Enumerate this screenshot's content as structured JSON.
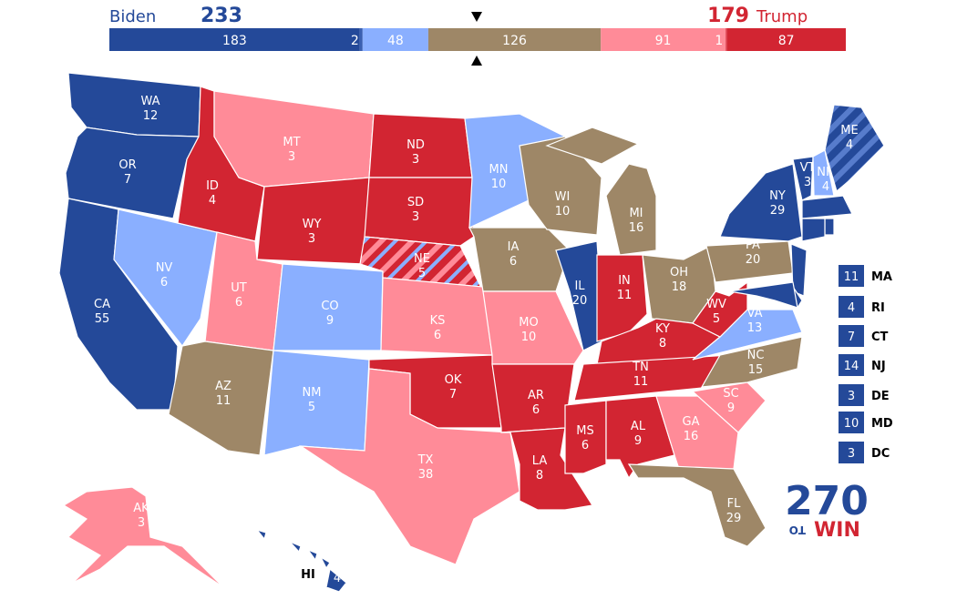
{
  "header": {
    "biden_label": "Biden",
    "biden_total": 233,
    "trump_total": 179,
    "trump_label": "Trump"
  },
  "ratings": {
    "safe_d": "#244999",
    "likely_d": "#3a5fb0",
    "lean_d": "#8aafff",
    "tossup": "#9e8767",
    "lean_r": "#ff8b98",
    "likely_r": "#e8505f",
    "safe_r": "#d22532"
  },
  "bar": [
    {
      "value": 183,
      "rating": "safe_d"
    },
    {
      "value": 2,
      "rating": "likely_d"
    },
    {
      "value": 48,
      "rating": "lean_d"
    },
    {
      "value": 126,
      "rating": "tossup"
    },
    {
      "value": 91,
      "rating": "lean_r"
    },
    {
      "value": 1,
      "rating": "likely_r"
    },
    {
      "value": 87,
      "rating": "safe_r"
    }
  ],
  "states": [
    {
      "abbr": "WA",
      "ev": 12,
      "rating": "safe_d"
    },
    {
      "abbr": "OR",
      "ev": 7,
      "rating": "safe_d"
    },
    {
      "abbr": "CA",
      "ev": 55,
      "rating": "safe_d"
    },
    {
      "abbr": "NV",
      "ev": 6,
      "rating": "lean_d"
    },
    {
      "abbr": "ID",
      "ev": 4,
      "rating": "safe_r"
    },
    {
      "abbr": "MT",
      "ev": 3,
      "rating": "lean_r"
    },
    {
      "abbr": "WY",
      "ev": 3,
      "rating": "safe_r"
    },
    {
      "abbr": "UT",
      "ev": 6,
      "rating": "lean_r"
    },
    {
      "abbr": "CO",
      "ev": 9,
      "rating": "lean_d"
    },
    {
      "abbr": "AZ",
      "ev": 11,
      "rating": "tossup"
    },
    {
      "abbr": "NM",
      "ev": 5,
      "rating": "lean_d"
    },
    {
      "abbr": "ND",
      "ev": 3,
      "rating": "safe_r"
    },
    {
      "abbr": "SD",
      "ev": 3,
      "rating": "safe_r"
    },
    {
      "abbr": "NE",
      "ev": 5,
      "rating": "split_ne"
    },
    {
      "abbr": "KS",
      "ev": 6,
      "rating": "lean_r"
    },
    {
      "abbr": "OK",
      "ev": 7,
      "rating": "safe_r"
    },
    {
      "abbr": "TX",
      "ev": 38,
      "rating": "lean_r"
    },
    {
      "abbr": "MN",
      "ev": 10,
      "rating": "lean_d"
    },
    {
      "abbr": "IA",
      "ev": 6,
      "rating": "tossup"
    },
    {
      "abbr": "MO",
      "ev": 10,
      "rating": "lean_r"
    },
    {
      "abbr": "AR",
      "ev": 6,
      "rating": "safe_r"
    },
    {
      "abbr": "LA",
      "ev": 8,
      "rating": "safe_r"
    },
    {
      "abbr": "WI",
      "ev": 10,
      "rating": "tossup"
    },
    {
      "abbr": "IL",
      "ev": 20,
      "rating": "safe_d"
    },
    {
      "abbr": "MI",
      "ev": 16,
      "rating": "tossup"
    },
    {
      "abbr": "IN",
      "ev": 11,
      "rating": "safe_r"
    },
    {
      "abbr": "OH",
      "ev": 18,
      "rating": "tossup"
    },
    {
      "abbr": "KY",
      "ev": 8,
      "rating": "safe_r"
    },
    {
      "abbr": "TN",
      "ev": 11,
      "rating": "safe_r"
    },
    {
      "abbr": "MS",
      "ev": 6,
      "rating": "safe_r"
    },
    {
      "abbr": "AL",
      "ev": 9,
      "rating": "safe_r"
    },
    {
      "abbr": "GA",
      "ev": 16,
      "rating": "lean_r"
    },
    {
      "abbr": "FL",
      "ev": 29,
      "rating": "tossup"
    },
    {
      "abbr": "SC",
      "ev": 9,
      "rating": "lean_r"
    },
    {
      "abbr": "NC",
      "ev": 15,
      "rating": "tossup"
    },
    {
      "abbr": "VA",
      "ev": 13,
      "rating": "lean_d"
    },
    {
      "abbr": "WV",
      "ev": 5,
      "rating": "safe_r"
    },
    {
      "abbr": "PA",
      "ev": 20,
      "rating": "tossup"
    },
    {
      "abbr": "NY",
      "ev": 29,
      "rating": "safe_d"
    },
    {
      "abbr": "VT",
      "ev": 3,
      "rating": "safe_d"
    },
    {
      "abbr": "NH",
      "ev": 4,
      "rating": "lean_d"
    },
    {
      "abbr": "ME",
      "ev": 4,
      "rating": "split_me"
    },
    {
      "abbr": "MA",
      "ev": 11,
      "rating": "safe_d"
    },
    {
      "abbr": "RI",
      "ev": 4,
      "rating": "safe_d"
    },
    {
      "abbr": "CT",
      "ev": 7,
      "rating": "safe_d"
    },
    {
      "abbr": "NJ",
      "ev": 14,
      "rating": "safe_d"
    },
    {
      "abbr": "DE",
      "ev": 3,
      "rating": "safe_d"
    },
    {
      "abbr": "MD",
      "ev": 10,
      "rating": "safe_d"
    },
    {
      "abbr": "DC",
      "ev": 3,
      "rating": "safe_d"
    },
    {
      "abbr": "AK",
      "ev": 3,
      "rating": "lean_r"
    },
    {
      "abbr": "HI",
      "ev": 4,
      "rating": "safe_d"
    }
  ],
  "logo": {
    "number": "270",
    "to": "TO",
    "win": "WIN"
  }
}
